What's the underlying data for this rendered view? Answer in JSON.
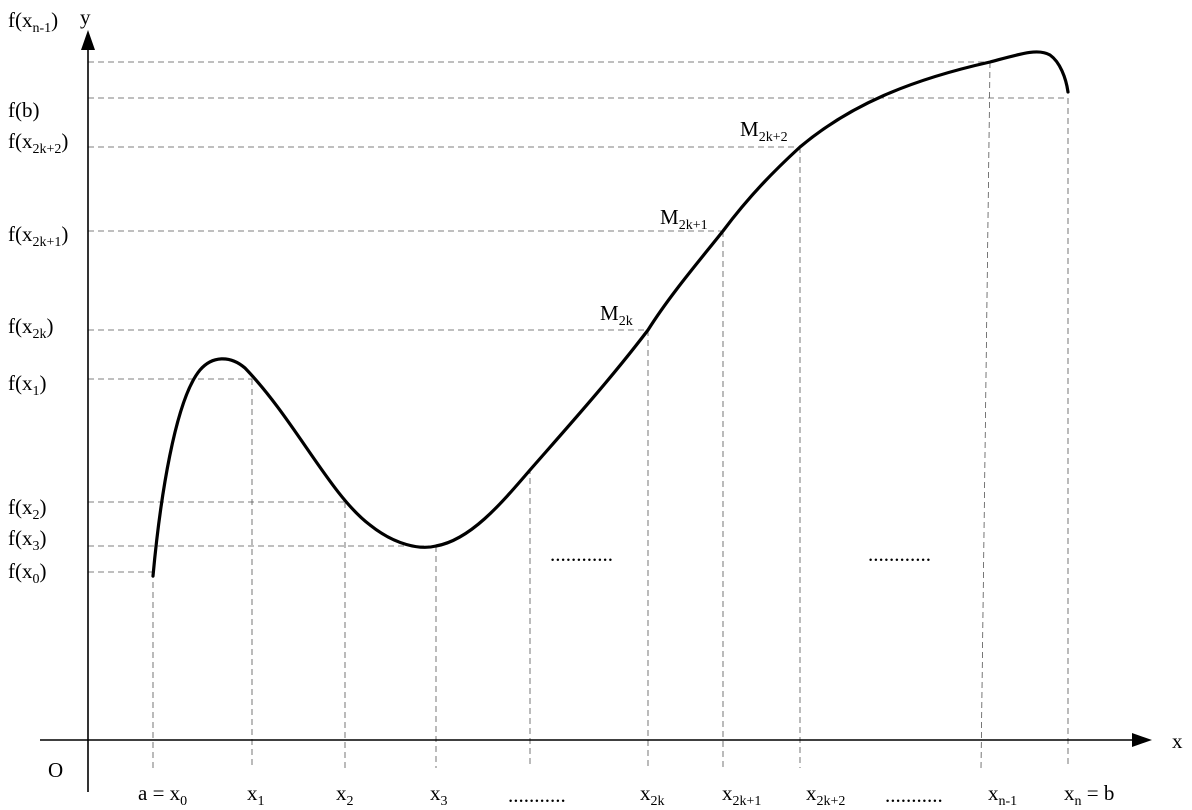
{
  "axes": {
    "x_label": "x",
    "y_label": "y",
    "origin_label": "O"
  },
  "x_labels": [
    {
      "base": "a = x",
      "sub": "0"
    },
    {
      "base": "x",
      "sub": "1"
    },
    {
      "base": "x",
      "sub": "2"
    },
    {
      "base": "x",
      "sub": "3"
    },
    {
      "base": "...........",
      "sub": ""
    },
    {
      "base": "x",
      "sub": "2k"
    },
    {
      "base": "x",
      "sub": "2k+1"
    },
    {
      "base": "x",
      "sub": "2k+2"
    },
    {
      "base": "...........",
      "sub": ""
    },
    {
      "base": "x",
      "sub": "n-1"
    },
    {
      "base": "x",
      "sub": "n",
      "post": " = b"
    }
  ],
  "y_labels": [
    {
      "pre": "f(x",
      "sub": "n-1",
      "post": ")"
    },
    {
      "pre": "f(b)",
      "sub": "",
      "post": ""
    },
    {
      "pre": "f(x",
      "sub": "2k+2",
      "post": ")"
    },
    {
      "pre": "f(x",
      "sub": "2k+1",
      "post": ")"
    },
    {
      "pre": "f(x",
      "sub": "2k",
      "post": ")"
    },
    {
      "pre": "f(x",
      "sub": "1",
      "post": ")"
    },
    {
      "pre": "f(x",
      "sub": "2",
      "post": ")"
    },
    {
      "pre": "f(x",
      "sub": "3",
      "post": ")"
    },
    {
      "pre": "f(x",
      "sub": "0",
      "post": ")"
    }
  ],
  "points": [
    {
      "base": "M",
      "sub": "2k"
    },
    {
      "base": "M",
      "sub": "2k+1"
    },
    {
      "base": "M",
      "sub": "2k+2"
    }
  ],
  "ellipses": [
    "............",
    "............"
  ]
}
